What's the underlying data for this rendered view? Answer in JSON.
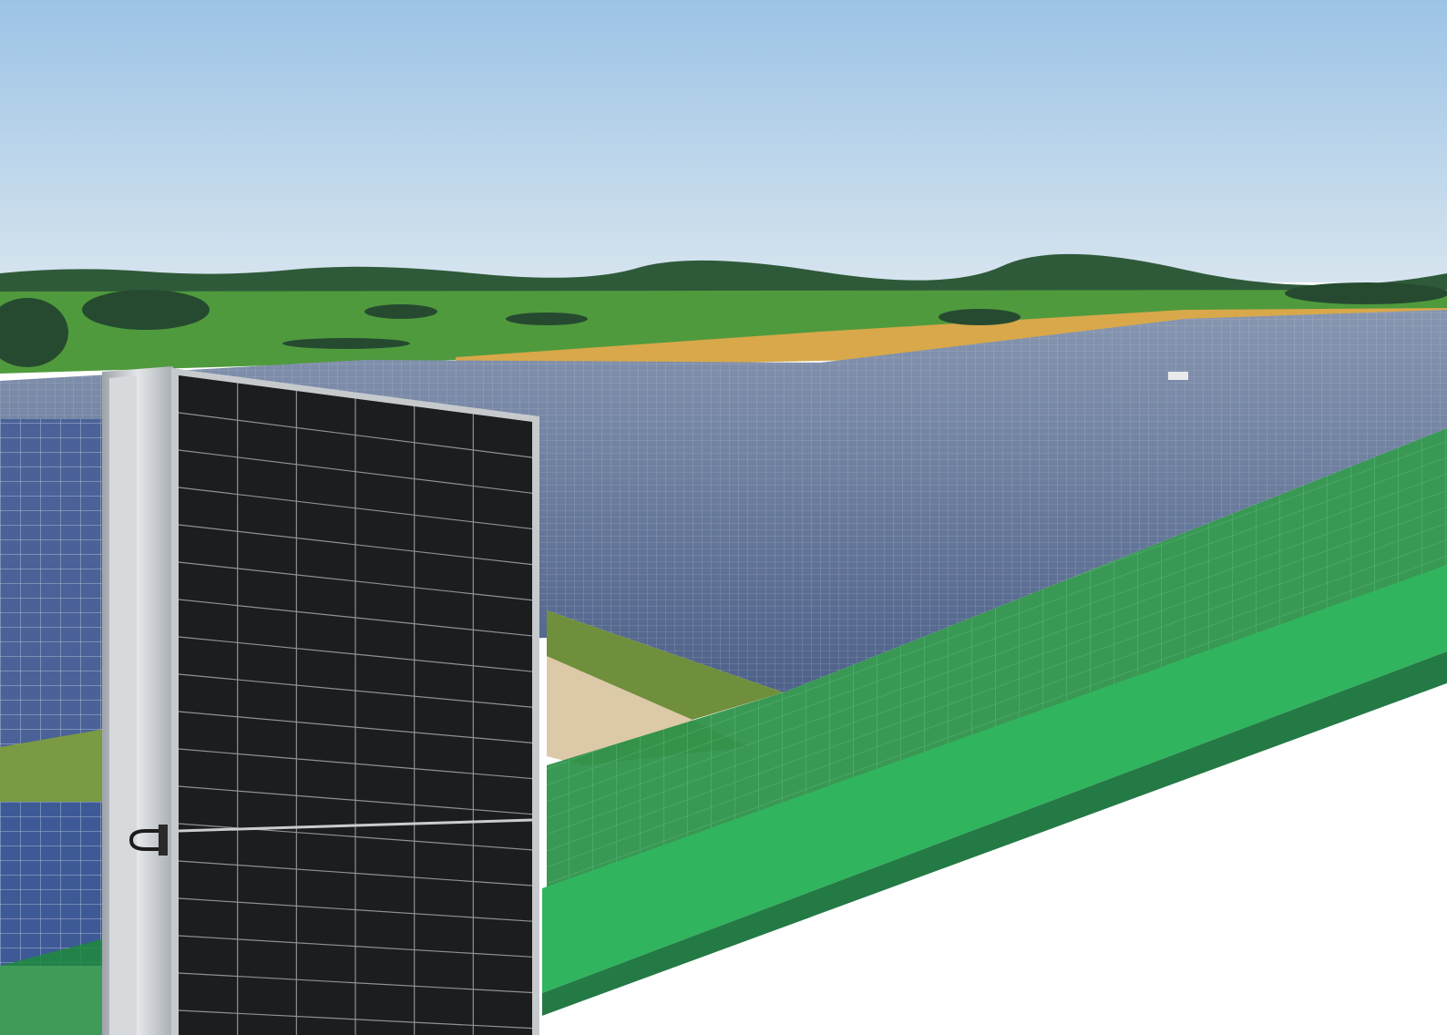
{
  "scene": {
    "subject": "solar-park-hero-banner",
    "colors": {
      "sky_top": "#9cc3e6",
      "sky_bottom": "#d6e4ee",
      "treeline": "#2f5a3a",
      "meadow": "#4f9a3d",
      "wheat": "#d8a84a",
      "array_far": "#7d8ea8",
      "array_near": "#5b6f93",
      "cell_line": "#c9d4e4",
      "panel_face": "#1b1d1f",
      "panel_frame": "#b9bdc2",
      "panel_grid": "#8e9296",
      "brand_green": "#31b45e",
      "brand_green_dark": "#247a45",
      "overlay_green": "#1e8a3c",
      "road": "#dcc9a8"
    }
  }
}
